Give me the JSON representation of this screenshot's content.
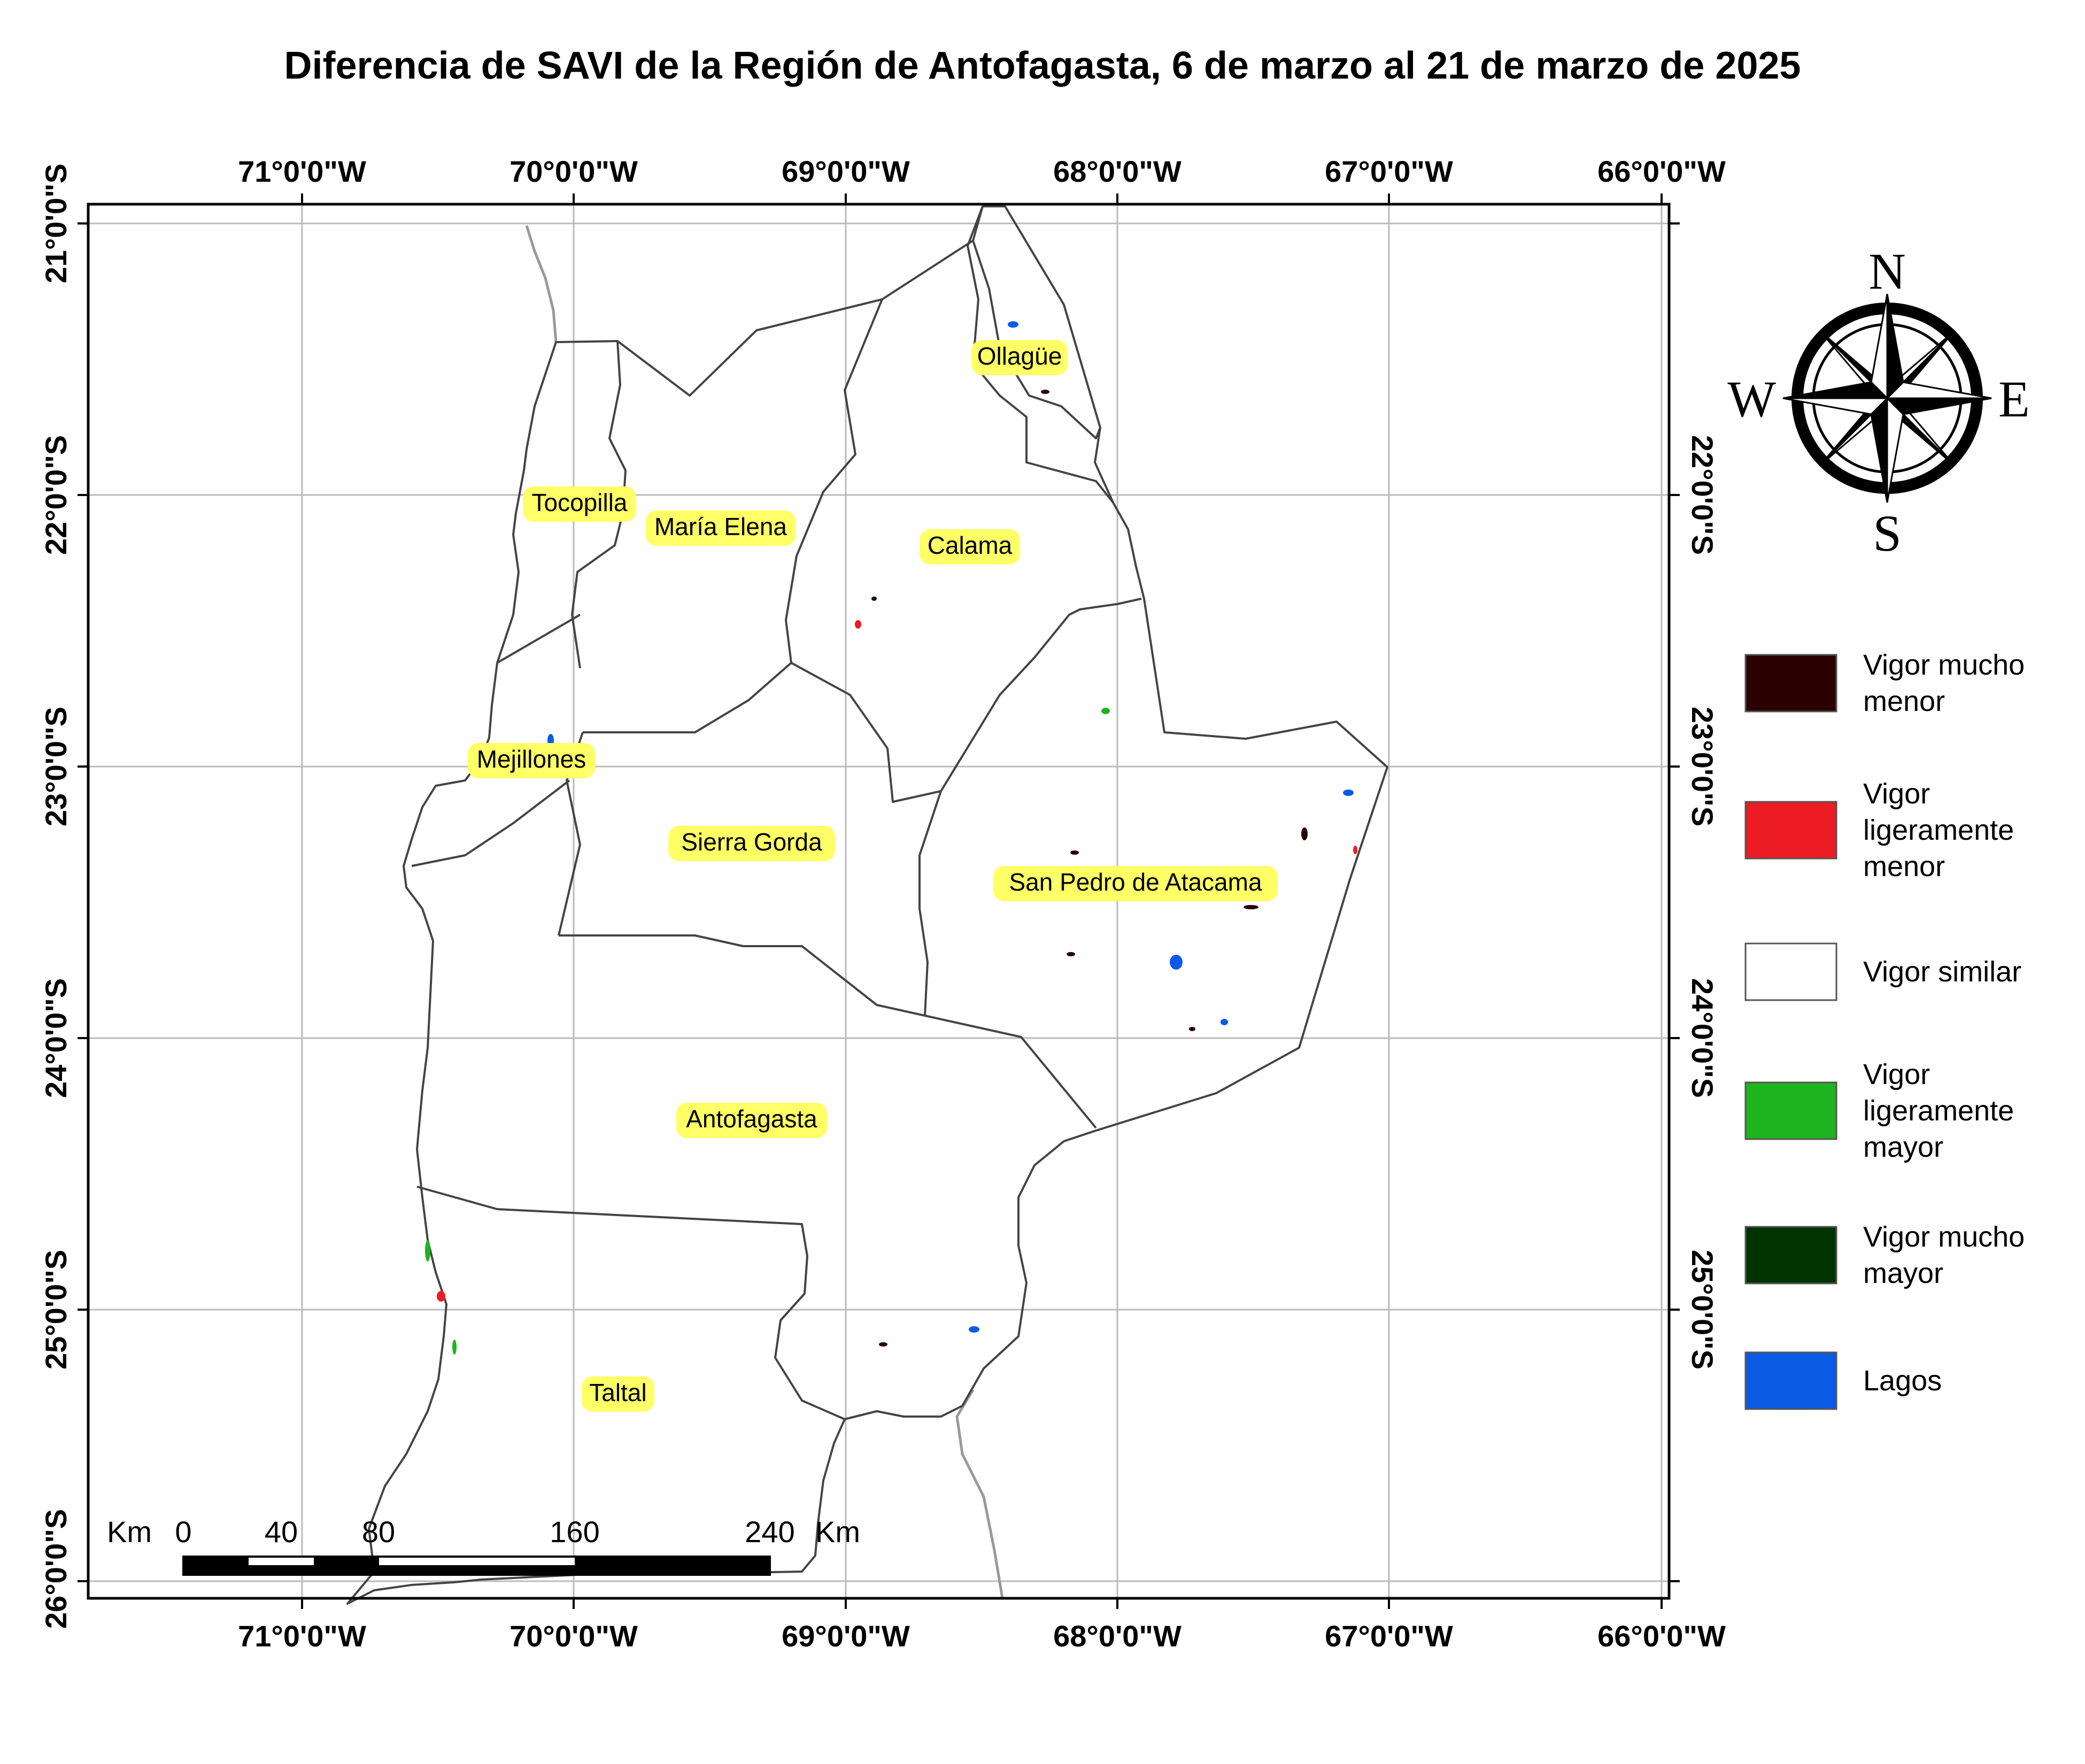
{
  "title": "Diferencia de SAVI de la Región de Antofagasta, 6 de marzo al 21 de marzo de 2025",
  "longitude_labels": [
    "71°0'0\"W",
    "70°0'0\"W",
    "69°0'0\"W",
    "68°0'0\"W",
    "67°0'0\"W",
    "66°0'0\"W"
  ],
  "latitude_labels": [
    "21°0'0\"S",
    "22°0'0\"S",
    "23°0'0\"S",
    "24°0'0\"S",
    "25°0'0\"S",
    "26°0'0\"S"
  ],
  "communes": [
    "Ollagüe",
    "Tocopilla",
    "María Elena",
    "Calama",
    "Mejillones",
    "Sierra Gorda",
    "San Pedro de Atacama",
    "Antofagasta",
    "Taltal"
  ],
  "compass": {
    "north": "N",
    "south": "S",
    "east": "E",
    "west": "W"
  },
  "legend": [
    {
      "label_lines": [
        "Vigor mucho",
        "menor"
      ],
      "color": "#2b0000"
    },
    {
      "label_lines": [
        "Vigor",
        "ligeramente",
        "menor"
      ],
      "color": "#ed1c24"
    },
    {
      "label_lines": [
        "Vigor similar"
      ],
      "color": "#ffffff"
    },
    {
      "label_lines": [
        "Vigor",
        "ligeramente",
        "mayor"
      ],
      "color": "#1db41d"
    },
    {
      "label_lines": [
        "Vigor mucho",
        "mayor"
      ],
      "color": "#003300"
    },
    {
      "label_lines": [
        "Lagos"
      ],
      "color": "#0a5ae6"
    }
  ],
  "scale_bar": {
    "unit": "Km",
    "ticks": [
      "0",
      "40",
      "80",
      "160",
      "240"
    ]
  },
  "colors": {
    "boundary": "#444444",
    "graticule": "#bbbbbb",
    "label_highlight": "#ffff66",
    "neighbor_border": "#999999"
  }
}
